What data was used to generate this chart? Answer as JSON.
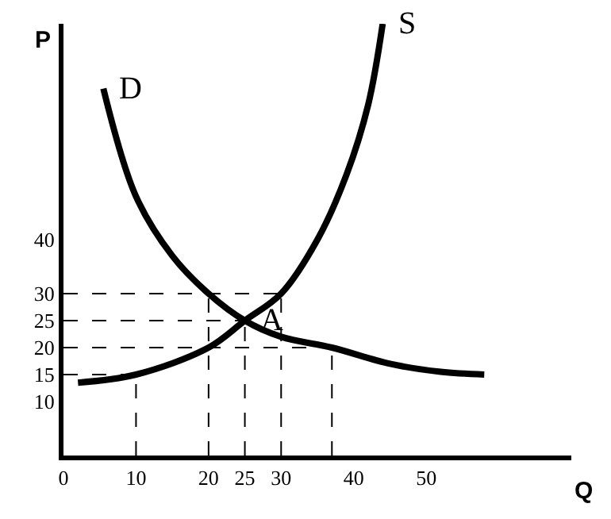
{
  "chart_data": {
    "type": "line",
    "xlabel": "Q",
    "ylabel": "P",
    "xlim": [
      0,
      70
    ],
    "ylim": [
      0,
      80
    ],
    "xticks": [
      0,
      10,
      20,
      25,
      30,
      40,
      50
    ],
    "yticks": [
      10,
      15,
      20,
      25,
      30,
      40
    ],
    "marker": "none",
    "annotations": [
      {
        "text": "D",
        "x": 5.5,
        "y": 68
      },
      {
        "text": "S",
        "x": 44,
        "y": 80
      },
      {
        "text": "A",
        "x": 25,
        "y": 25
      }
    ],
    "series": [
      {
        "color": "#000000",
        "line_style": "solid",
        "x": [
          5.5,
          10,
          15,
          20,
          25,
          30,
          37,
          45,
          52,
          58
        ],
        "values": [
          68,
          48,
          37,
          30,
          25,
          22,
          20,
          17,
          15.5,
          15
        ]
      },
      {
        "color": "#000000",
        "line_style": "solid",
        "x": [
          2,
          10,
          20,
          25,
          30,
          35,
          39,
          42,
          44
        ],
        "values": [
          13.5,
          15,
          20,
          25,
          30,
          40,
          52,
          65,
          80
        ]
      },
      {
        "color": "#000000",
        "line_style": "dashed",
        "x": [
          0,
          30
        ],
        "values": [
          30,
          30
        ]
      },
      {
        "color": "#000000",
        "line_style": "dashed",
        "x": [
          0,
          25
        ],
        "values": [
          25,
          25
        ]
      },
      {
        "color": "#000000",
        "line_style": "dashed",
        "x": [
          0,
          37
        ],
        "values": [
          20,
          20
        ]
      },
      {
        "color": "#000000",
        "line_style": "dashed",
        "x": [
          0,
          10
        ],
        "values": [
          15,
          15
        ]
      },
      {
        "color": "#000000",
        "line_style": "dashed",
        "x": [
          10,
          10
        ],
        "values": [
          0,
          15
        ]
      },
      {
        "color": "#000000",
        "line_style": "dashed",
        "x": [
          20,
          20
        ],
        "values": [
          0,
          30
        ]
      },
      {
        "color": "#000000",
        "line_style": "dashed",
        "x": [
          25,
          25
        ],
        "values": [
          0,
          25
        ]
      },
      {
        "color": "#000000",
        "line_style": "dashed",
        "x": [
          30,
          30
        ],
        "values": [
          0,
          30
        ]
      },
      {
        "color": "#000000",
        "line_style": "dashed",
        "x": [
          37,
          37
        ],
        "values": [
          0,
          20
        ]
      }
    ]
  }
}
